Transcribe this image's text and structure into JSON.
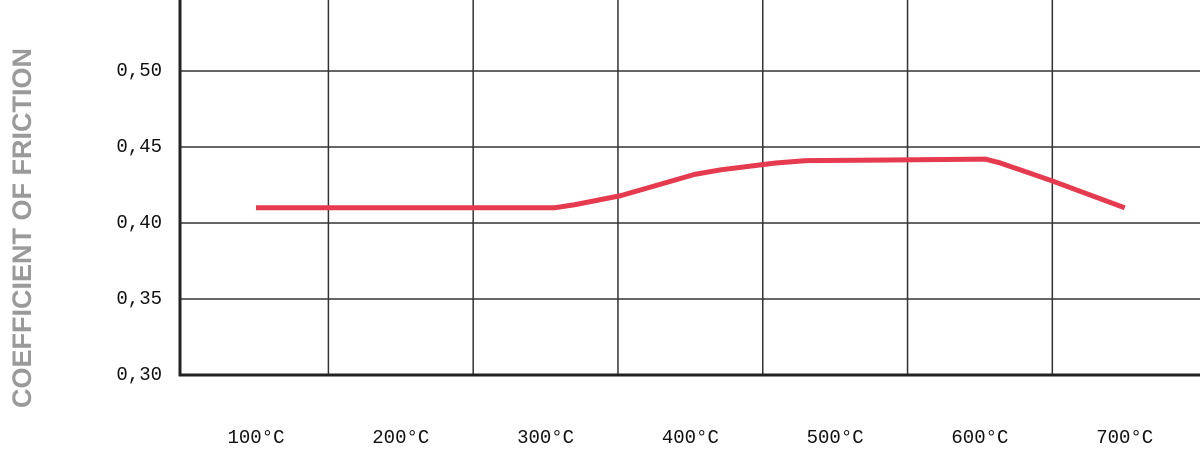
{
  "chart_data": {
    "type": "line",
    "y_label": "COEFFICIENT OF FRICTION",
    "x": [
      100,
      306,
      320,
      352,
      403,
      421,
      459,
      480,
      604,
      614,
      649,
      700
    ],
    "series": [
      {
        "color": "#e63a4e",
        "values": [
          0.41,
          0.41,
          0.412,
          0.418,
          0.432,
          0.435,
          0.4395,
          0.441,
          0.442,
          0.4395,
          0.428,
          0.41
        ]
      }
    ],
    "xlim": [
      47.5,
      752
    ],
    "xticks": [
      {
        "value": 100,
        "label": "100°C"
      },
      {
        "value": 200,
        "label": "200°C"
      },
      {
        "value": 300,
        "label": "300°C"
      },
      {
        "value": 400,
        "label": "400°C"
      },
      {
        "value": 500,
        "label": "500°C"
      },
      {
        "value": 600,
        "label": "600°C"
      },
      {
        "value": 700,
        "label": "700°C"
      }
    ],
    "ylim": [
      0.3,
      0.55
    ],
    "yticks": [
      {
        "value": 0.3,
        "label": "0,30"
      },
      {
        "value": 0.35,
        "label": "0,35"
      },
      {
        "value": 0.4,
        "label": "0,40"
      },
      {
        "value": 0.45,
        "label": "0,45"
      },
      {
        "value": 0.5,
        "label": "0,50"
      }
    ],
    "grid": true
  }
}
